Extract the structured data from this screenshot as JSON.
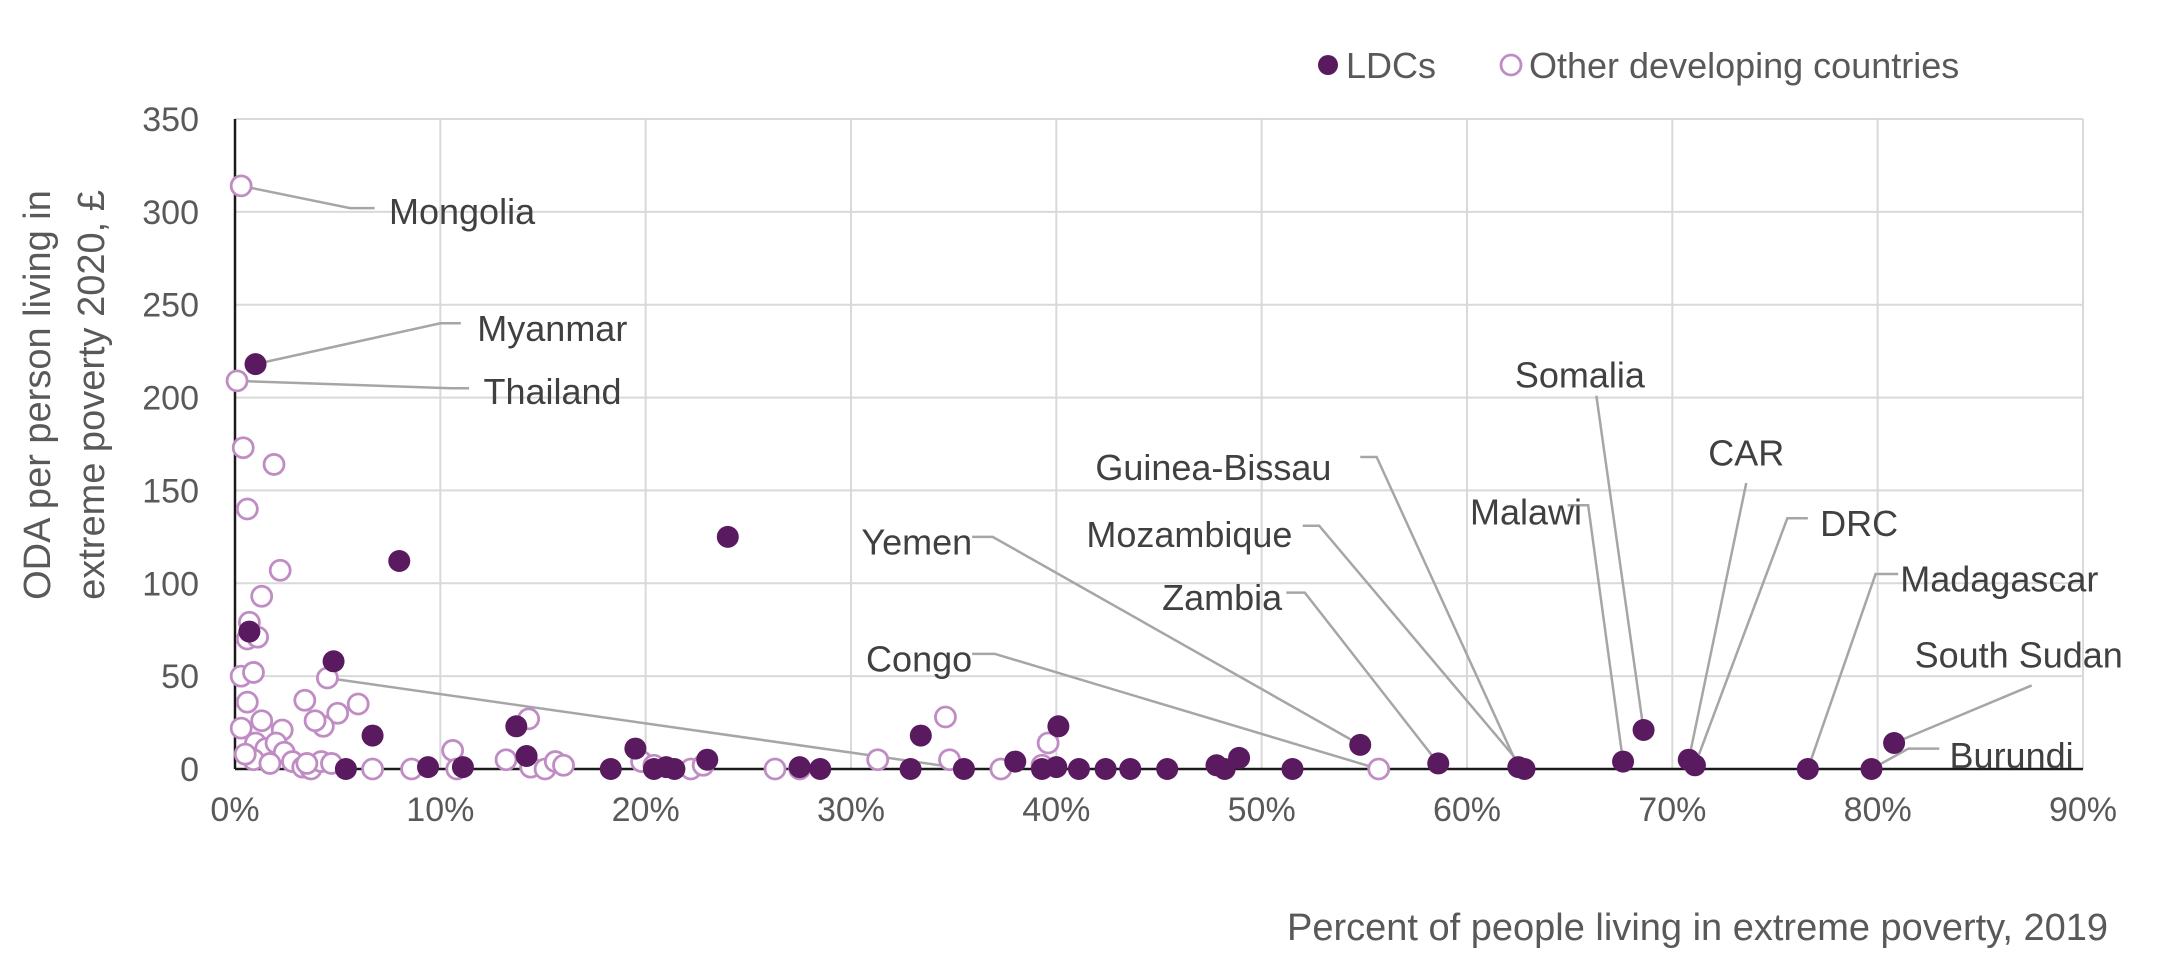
{
  "chart_data": {
    "type": "scatter",
    "xlabel": "Percent of people living in extreme poverty, 2019",
    "ylabel": [
      "ODA per person living in",
      "extreme poverty 2020, £"
    ],
    "xlim": [
      0,
      90
    ],
    "ylim": [
      0,
      350
    ],
    "x_ticks": [
      0,
      10,
      20,
      30,
      40,
      50,
      60,
      70,
      80,
      90
    ],
    "x_tick_labels": [
      "0%",
      "10%",
      "20%",
      "30%",
      "40%",
      "50%",
      "60%",
      "70%",
      "80%",
      "90%"
    ],
    "y_ticks": [
      0,
      50,
      100,
      150,
      200,
      250,
      300,
      350
    ],
    "y_tick_labels": [
      "0",
      "50",
      "100",
      "150",
      "200",
      "250",
      "300",
      "350"
    ],
    "grid": true,
    "legend_position": "top-right",
    "colors": {
      "ldc": "#5a1a60",
      "other": "#c08cc4",
      "leader": "#a6a6a6",
      "text": "#595959"
    },
    "series": [
      {
        "name": "LDCs",
        "style": "filled",
        "points": [
          [
            1.0,
            218
          ],
          [
            8.0,
            112
          ],
          [
            24.0,
            125
          ],
          [
            4.8,
            58
          ],
          [
            0.7,
            74
          ],
          [
            6.7,
            18
          ],
          [
            13.7,
            23
          ],
          [
            14.2,
            7
          ],
          [
            5.4,
            0
          ],
          [
            9.4,
            1
          ],
          [
            11.1,
            1
          ],
          [
            18.3,
            0
          ],
          [
            19.5,
            11
          ],
          [
            20.4,
            0
          ],
          [
            21.0,
            1
          ],
          [
            21.4,
            0
          ],
          [
            23.0,
            5
          ],
          [
            27.5,
            1
          ],
          [
            28.5,
            0
          ],
          [
            32.9,
            0
          ],
          [
            33.4,
            18
          ],
          [
            35.5,
            0
          ],
          [
            38.0,
            4
          ],
          [
            39.3,
            0
          ],
          [
            40.0,
            1
          ],
          [
            40.1,
            23
          ],
          [
            41.1,
            0
          ],
          [
            42.4,
            0
          ],
          [
            43.6,
            0
          ],
          [
            45.4,
            0
          ],
          [
            47.8,
            2
          ],
          [
            48.2,
            0
          ],
          [
            48.9,
            6
          ],
          [
            51.5,
            0
          ],
          [
            54.8,
            13
          ],
          [
            58.6,
            3
          ],
          [
            62.5,
            1
          ],
          [
            62.8,
            0
          ],
          [
            67.6,
            4
          ],
          [
            68.6,
            21
          ],
          [
            70.8,
            5
          ],
          [
            71.1,
            2
          ],
          [
            76.6,
            0
          ],
          [
            79.7,
            0
          ],
          [
            80.8,
            14
          ]
        ]
      },
      {
        "name": "Other developing countries",
        "style": "hollow",
        "points": [
          [
            0.3,
            314
          ],
          [
            0.1,
            209
          ],
          [
            0.4,
            173
          ],
          [
            0.6,
            140
          ],
          [
            1.9,
            164
          ],
          [
            2.2,
            107
          ],
          [
            1.3,
            93
          ],
          [
            0.7,
            79
          ],
          [
            0.6,
            70
          ],
          [
            1.1,
            71
          ],
          [
            0.3,
            50
          ],
          [
            0.9,
            52
          ],
          [
            0.6,
            36
          ],
          [
            0.3,
            22
          ],
          [
            1.3,
            26
          ],
          [
            2.3,
            21
          ],
          [
            3.4,
            37
          ],
          [
            4.5,
            49
          ],
          [
            6.0,
            35
          ],
          [
            5.0,
            30
          ],
          [
            4.3,
            23
          ],
          [
            3.9,
            26
          ],
          [
            1.0,
            14
          ],
          [
            1.5,
            11
          ],
          [
            2.0,
            14
          ],
          [
            2.4,
            9
          ],
          [
            0.9,
            5
          ],
          [
            1.7,
            3
          ],
          [
            2.8,
            4
          ],
          [
            3.3,
            1
          ],
          [
            3.7,
            0
          ],
          [
            4.2,
            4
          ],
          [
            0.5,
            8
          ],
          [
            3.5,
            3
          ],
          [
            4.7,
            3
          ],
          [
            6.7,
            0
          ],
          [
            8.6,
            0
          ],
          [
            10.6,
            10
          ],
          [
            10.8,
            0
          ],
          [
            13.2,
            5
          ],
          [
            14.3,
            27
          ],
          [
            14.4,
            1
          ],
          [
            15.1,
            0
          ],
          [
            15.6,
            4
          ],
          [
            16.0,
            2
          ],
          [
            19.8,
            4
          ],
          [
            20.4,
            2
          ],
          [
            22.2,
            0
          ],
          [
            22.8,
            2
          ],
          [
            26.3,
            0
          ],
          [
            27.5,
            0
          ],
          [
            31.3,
            5
          ],
          [
            34.6,
            28
          ],
          [
            34.8,
            5
          ],
          [
            37.3,
            0
          ],
          [
            39.3,
            2
          ],
          [
            39.6,
            14
          ],
          [
            55.7,
            0
          ]
        ]
      }
    ],
    "annotations": [
      {
        "label": "Mongolia",
        "point": [
          0.3,
          314
        ],
        "anchor": "start",
        "text_x": 7.5,
        "text_y": 300,
        "path_data": [
          [
            0.3,
            314
          ],
          [
            5.6,
            302
          ],
          [
            6.8,
            302
          ]
        ]
      },
      {
        "label": "Myanmar",
        "point": [
          1.0,
          218
        ],
        "anchor": "start",
        "text_x": 11.8,
        "text_y": 237,
        "path_data": [
          [
            1.0,
            218
          ],
          [
            10.0,
            240
          ],
          [
            11.0,
            240
          ]
        ]
      },
      {
        "label": "Thailand",
        "point": [
          0.1,
          209
        ],
        "anchor": "start",
        "text_x": 12.1,
        "text_y": 203,
        "path_data": [
          [
            0.1,
            209
          ],
          [
            10.5,
            205
          ],
          [
            11.4,
            205
          ]
        ]
      },
      {
        "label": "Somalia",
        "point": [
          68.6,
          21
        ],
        "anchor": "middle",
        "text_x": 65.5,
        "text_y": 212,
        "path_data": [
          [
            68.6,
            21
          ],
          [
            66.3,
            201
          ]
        ]
      },
      {
        "label": "Guinea-Bissau",
        "point": [
          62.5,
          1
        ],
        "anchor": "end",
        "text_x": 53.4,
        "text_y": 162,
        "path_data": [
          [
            62.5,
            1
          ],
          [
            55.6,
            168
          ],
          [
            54.8,
            168
          ]
        ]
      },
      {
        "label": "CAR",
        "point": [
          70.8,
          5
        ],
        "anchor": "middle",
        "text_x": 73.6,
        "text_y": 170,
        "path_data": [
          [
            70.8,
            5
          ],
          [
            73.6,
            154
          ]
        ]
      },
      {
        "label": "Malawi",
        "point": [
          67.6,
          4
        ],
        "anchor": "end",
        "text_x": 65.6,
        "text_y": 138,
        "path_data": [
          [
            67.6,
            4
          ],
          [
            65.9,
            142
          ],
          [
            64.9,
            142
          ]
        ]
      },
      {
        "label": "Mozambique",
        "point": [
          62.8,
          0
        ],
        "anchor": "end",
        "text_x": 51.5,
        "text_y": 126,
        "path_data": [
          [
            62.8,
            0
          ],
          [
            52.8,
            131
          ],
          [
            52.0,
            131
          ]
        ]
      },
      {
        "label": "DRC",
        "point": [
          71.1,
          2
        ],
        "anchor": "start",
        "text_x": 77.2,
        "text_y": 132,
        "path_data": [
          [
            71.1,
            2
          ],
          [
            75.6,
            135
          ],
          [
            76.6,
            135
          ]
        ]
      },
      {
        "label": "Yemen",
        "point": [
          54.8,
          13
        ],
        "anchor": "end",
        "text_x": 35.9,
        "text_y": 122,
        "path_data": [
          [
            54.8,
            13
          ],
          [
            36.9,
            125
          ],
          [
            35.9,
            125
          ]
        ]
      },
      {
        "label": "Madagascar",
        "point": [
          76.6,
          0
        ],
        "anchor": "start",
        "text_x": 81.1,
        "text_y": 102,
        "path_data": [
          [
            76.6,
            0
          ],
          [
            79.9,
            105
          ],
          [
            81.0,
            105
          ]
        ]
      },
      {
        "label": "Zambia",
        "point": [
          58.6,
          3
        ],
        "anchor": "end",
        "text_x": 51.0,
        "text_y": 92,
        "path_data": [
          [
            58.6,
            3
          ],
          [
            52.1,
            95
          ],
          [
            51.2,
            95
          ]
        ]
      },
      {
        "label": "South Sudan",
        "point": [
          80.8,
          14
        ],
        "anchor": "start",
        "text_x": 81.8,
        "text_y": 61,
        "path_data": [
          [
            80.8,
            14
          ],
          [
            87.5,
            45
          ]
        ]
      },
      {
        "label": "Congo",
        "point": [
          55.7,
          0
        ],
        "anchor": "end",
        "text_x": 35.9,
        "text_y": 59,
        "path_data": [
          [
            55.7,
            0
          ],
          [
            37.0,
            62
          ],
          [
            35.9,
            62
          ]
        ]
      },
      {
        "label": "Burundi",
        "point": [
          79.7,
          0
        ],
        "anchor": "start",
        "text_x": 83.5,
        "text_y": 7,
        "path_data": [
          [
            79.7,
            0
          ],
          [
            81.5,
            11
          ],
          [
            83.0,
            11
          ]
        ]
      },
      {
        "label": "",
        "point": [
          4.5,
          49
        ],
        "anchor": "start",
        "text_x": 0,
        "text_y": 0,
        "path_data": [
          [
            4.5,
            49
          ],
          [
            35.6,
            0
          ]
        ]
      }
    ]
  }
}
